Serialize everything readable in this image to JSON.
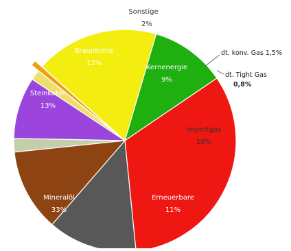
{
  "chart_data": {
    "type": "pie",
    "legend": "none",
    "slices": [
      {
        "label": "Sonstige",
        "value_label": "2%",
        "value": 2,
        "color": "#c3cfaa",
        "label_color": "#333333"
      },
      {
        "label": "Kernenergie",
        "value_label": "9%",
        "value": 9,
        "color": "#9b45dd",
        "label_color": "#ffffff"
      },
      {
        "label": "dt. konv. Gas",
        "value_label": "1,5%",
        "value": 1.5,
        "color": "#ede06a",
        "label_color": "#222222"
      },
      {
        "label": "dt. Tight Gas",
        "value_label": "0,8%",
        "value": 0.8,
        "color": "#ee9f16",
        "label_color": "#222222"
      },
      {
        "label": "Importgas",
        "value_label": "18%",
        "value": 18,
        "color": "#f4ee10",
        "label_color": "#333333"
      },
      {
        "label": "Erneuerbare",
        "value_label": "11%",
        "value": 11,
        "color": "#1eb00f",
        "label_color": "#ffffff"
      },
      {
        "label": "Mineralöl",
        "value_label": "33%",
        "value": 33,
        "color": "#ee1712",
        "label_color": "#ffffff"
      },
      {
        "label": "Steinkohle",
        "value_label": "13%",
        "value": 13,
        "color": "#585858",
        "label_color": "#ffffff"
      },
      {
        "label": "Braunkohle",
        "value_label": "12%",
        "value": 12,
        "color": "#8e4313",
        "label_color": "#ffffff"
      }
    ],
    "callouts": [
      {
        "text": "dt. konv. Gas 1,5%"
      },
      {
        "text": "dt. Tight Gas",
        "value": "0,8%"
      }
    ]
  }
}
